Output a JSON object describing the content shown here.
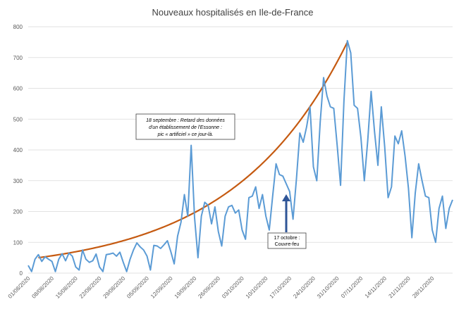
{
  "chart_data": {
    "type": "line",
    "title": "Nouveaux hospitalisés en Ile-de-France",
    "xlabel": "",
    "ylabel": "",
    "ylim": [
      0,
      800
    ],
    "y_ticks": [
      0,
      100,
      200,
      300,
      400,
      500,
      600,
      700,
      800
    ],
    "x_tick_labels": [
      "01/08/2020",
      "08/08/2020",
      "15/08/2020",
      "22/08/2020",
      "29/08/2020",
      "05/09/2020",
      "12/09/2020",
      "19/09/2020",
      "26/09/2020",
      "03/10/2020",
      "10/10/2020",
      "17/10/2020",
      "24/10/2020",
      "31/10/2020",
      "07/11/2020",
      "14/11/2020",
      "21/11/2020",
      "28/11/2020"
    ],
    "grid": true,
    "legend": "none",
    "colors": {
      "series": "#5B9BD5",
      "trend": "#C55A11",
      "arrow": "#2F5597",
      "grid": "#D9D9D9"
    },
    "series": [
      {
        "values": [
          25,
          5,
          45,
          60,
          38,
          53,
          45,
          38,
          5,
          45,
          63,
          40,
          65,
          55,
          20,
          10,
          75,
          45,
          35,
          40,
          62,
          20,
          5,
          60,
          62,
          65,
          55,
          68,
          35,
          5,
          45,
          75,
          98,
          85,
          75,
          55,
          10,
          90,
          88,
          80,
          92,
          105,
          70,
          30,
          120,
          165,
          255,
          185,
          415,
          180,
          50,
          185,
          230,
          220,
          160,
          215,
          135,
          88,
          185,
          215,
          220,
          195,
          205,
          140,
          110,
          245,
          250,
          280,
          210,
          255,
          185,
          140,
          250,
          355,
          320,
          315,
          290,
          265,
          175,
          305,
          455,
          425,
          475,
          540,
          345,
          300,
          490,
          635,
          575,
          540,
          535,
          415,
          285,
          560,
          755,
          715,
          545,
          535,
          440,
          300,
          430,
          590,
          460,
          350,
          540,
          410,
          245,
          280,
          445,
          420,
          462,
          380,
          275,
          115,
          260,
          355,
          300,
          250,
          245,
          140,
          100,
          210,
          250,
          145,
          210,
          238
        ]
      },
      {
        "type": "exponential-trend",
        "values": [
          50,
          750
        ]
      }
    ],
    "annotations": [
      {
        "text_lines": [
          "18 septembre : Retard des données",
          "d'un établissement de l'Essonne :",
          "pic « artificiel » ce jour-là."
        ]
      },
      {
        "text_lines": [
          "17 octobre :",
          "Couvre-feu"
        ]
      }
    ]
  }
}
